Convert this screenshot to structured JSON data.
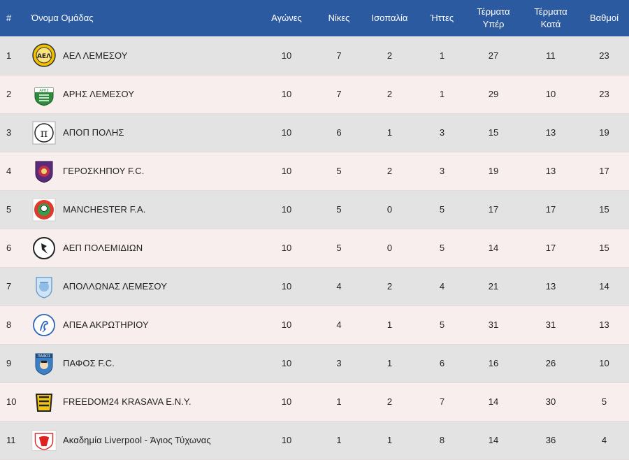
{
  "header": {
    "pos": "#",
    "team": "Όνομα Ομάδας",
    "played": "Αγώνες",
    "wins": "Νίκες",
    "draws": "Ισοπαλία",
    "losses": "Ήττες",
    "goals_for_1": "Τέρματα",
    "goals_for_2": "Υπέρ",
    "goals_against_1": "Τέρματα",
    "goals_against_2": "Κατά",
    "points": "Βαθμοί"
  },
  "rows": [
    {
      "pos": "1",
      "team": "ΑΕΛ ΛΕΜΕΣΟΥ",
      "logo": "ael-crest-icon",
      "played": "10",
      "wins": "7",
      "draws": "2",
      "losses": "1",
      "gf": "27",
      "ga": "11",
      "pts": "23"
    },
    {
      "pos": "2",
      "team": "ΑΡΗΣ ΛΕΜΕΣΟΥ",
      "logo": "aris-crest-icon",
      "played": "10",
      "wins": "7",
      "draws": "2",
      "losses": "1",
      "gf": "29",
      "ga": "10",
      "pts": "23"
    },
    {
      "pos": "3",
      "team": "ΑΠΟΠ ΠΟΛΗΣ",
      "logo": "apop-crest-icon",
      "played": "10",
      "wins": "6",
      "draws": "1",
      "losses": "3",
      "gf": "15",
      "ga": "13",
      "pts": "19"
    },
    {
      "pos": "4",
      "team": "ΓΕΡΟΣΚΗΠΟΥ F.C.",
      "logo": "geroskipou-crest-icon",
      "played": "10",
      "wins": "5",
      "draws": "2",
      "losses": "3",
      "gf": "19",
      "ga": "13",
      "pts": "17"
    },
    {
      "pos": "5",
      "team": "MANCHESTER F.A.",
      "logo": "manchester-crest-icon",
      "played": "10",
      "wins": "5",
      "draws": "0",
      "losses": "5",
      "gf": "17",
      "ga": "17",
      "pts": "15"
    },
    {
      "pos": "6",
      "team": "ΑΕΠ ΠΟΛΕΜΙΔΙΩΝ",
      "logo": "aep-crest-icon",
      "played": "10",
      "wins": "5",
      "draws": "0",
      "losses": "5",
      "gf": "14",
      "ga": "17",
      "pts": "15"
    },
    {
      "pos": "7",
      "team": "ΑΠΟΛΛΩΝΑΣ ΛΕΜΕΣΟΥ",
      "logo": "apollonas-crest-icon",
      "played": "10",
      "wins": "4",
      "draws": "2",
      "losses": "4",
      "gf": "21",
      "ga": "13",
      "pts": "14"
    },
    {
      "pos": "8",
      "team": "ΑΠΕΑ ΑΚΡΩΤΗΡΙΟΥ",
      "logo": "apea-crest-icon",
      "played": "10",
      "wins": "4",
      "draws": "1",
      "losses": "5",
      "gf": "31",
      "ga": "31",
      "pts": "13"
    },
    {
      "pos": "9",
      "team": "ΠΑΦΟΣ F.C.",
      "logo": "pafos-crest-icon",
      "played": "10",
      "wins": "3",
      "draws": "1",
      "losses": "6",
      "gf": "16",
      "ga": "26",
      "pts": "10"
    },
    {
      "pos": "10",
      "team": "FREEDOM24 KRASAVA E.N.Y.",
      "logo": "freedom24-crest-icon",
      "played": "10",
      "wins": "1",
      "draws": "2",
      "losses": "7",
      "gf": "14",
      "ga": "30",
      "pts": "5"
    },
    {
      "pos": "11",
      "team": "Ακαδημία Liverpool - Άγιος Τύχωνας",
      "logo": "liverpool-academy-crest-icon",
      "played": "10",
      "wins": "1",
      "draws": "1",
      "losses": "8",
      "gf": "14",
      "ga": "36",
      "pts": "4"
    }
  ],
  "colors": {
    "header_bg": "#2c5aa0",
    "row_odd": "#e3e3e3",
    "row_even": "#f9eeee"
  }
}
